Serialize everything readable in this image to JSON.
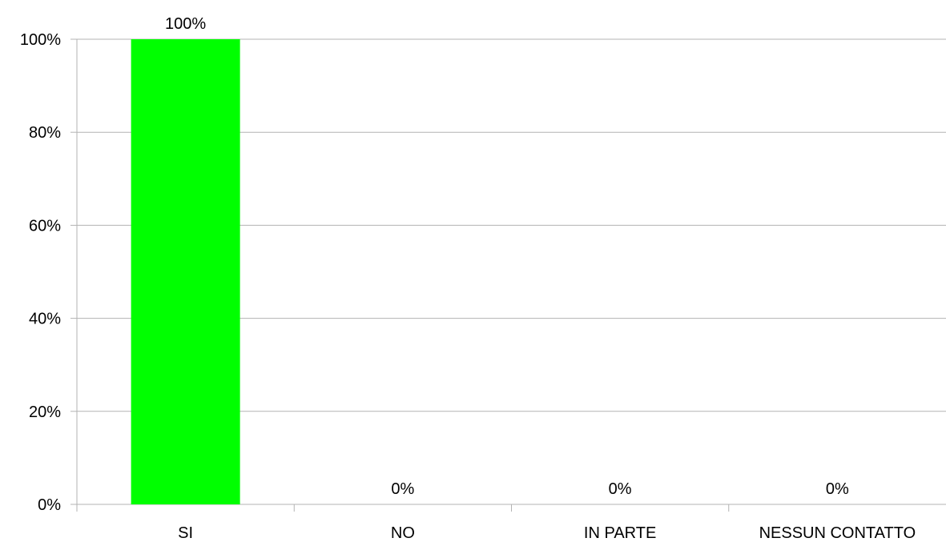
{
  "chart_data": {
    "type": "bar",
    "categories": [
      "SI",
      "NO",
      "IN PARTE",
      "NESSUN CONTATTO"
    ],
    "values": [
      100,
      0,
      0,
      0
    ],
    "data_labels": [
      "100%",
      "0%",
      "0%",
      "0%"
    ],
    "y_ticks": [
      0,
      20,
      40,
      60,
      80,
      100
    ],
    "y_tick_labels": [
      "0%",
      "20%",
      "40%",
      "60%",
      "80%",
      "100%"
    ],
    "ylim": [
      0,
      100
    ],
    "grid": true,
    "legend": "none",
    "bar_color": "#00ff00",
    "grid_color": "#b3b3b3",
    "axis_color": "#b3b3b3"
  }
}
